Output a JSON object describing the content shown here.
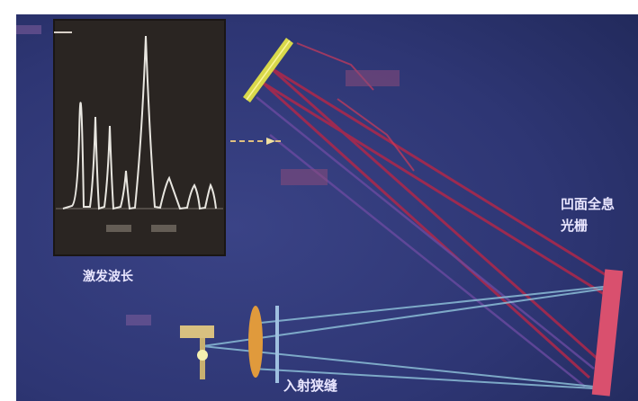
{
  "labels": {
    "inset_caption": "激发波长",
    "grating": "凹面全息光栅",
    "slit": "入射狭缝"
  },
  "colors": {
    "background": "#2c336f",
    "inset_bg": "#2a2522",
    "peaks": "#e8e6e0",
    "mirror": "#d8d84a",
    "red_beam": "#b0284a",
    "teal_beam": "#8bbdd6",
    "grating": "#d9506e",
    "lens": "#e09a3c",
    "label_text": "#e9e6ff"
  }
}
